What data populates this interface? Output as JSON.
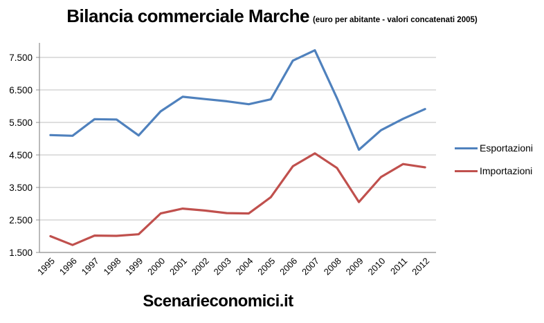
{
  "header": {
    "title": "Bilancia commerciale Marche",
    "subtitle": "(euro per abitante - valori concatenati 2005)"
  },
  "footer": {
    "watermark": "Scenarieconomici.it"
  },
  "chart_data": {
    "type": "line",
    "title": "Bilancia commerciale Marche",
    "subtitle": "(euro per abitante - valori concatenati 2005)",
    "categories": [
      "1995",
      "1996",
      "1997",
      "1998",
      "1999",
      "2000",
      "2001",
      "2002",
      "2003",
      "2004",
      "2005",
      "2006",
      "2007",
      "2008",
      "2009",
      "2010",
      "2011",
      "2012"
    ],
    "series": [
      {
        "name": "Esportazioni",
        "color": "#4F81BD",
        "values": [
          5110,
          5090,
          5600,
          5590,
          5100,
          5840,
          6290,
          6220,
          6150,
          6060,
          6210,
          7400,
          7720,
          6250,
          4660,
          5260,
          5610,
          5910
        ]
      },
      {
        "name": "Importazioni",
        "color": "#C0504D",
        "values": [
          2000,
          1730,
          2020,
          2010,
          2060,
          2700,
          2850,
          2790,
          2710,
          2700,
          3200,
          4150,
          4550,
          4100,
          3050,
          3820,
          4220,
          4120
        ]
      }
    ],
    "ylim": [
      1500,
      7500
    ],
    "ytick_step": 1000,
    "ytick_labels": [
      "1.500",
      "2.500",
      "3.500",
      "4.500",
      "5.500",
      "6.500",
      "7.500"
    ],
    "grid": true,
    "legend_position": "right",
    "grid_color": "#BFBFBF",
    "axis_color": "#8C8C8C",
    "text_color": "#000000"
  }
}
